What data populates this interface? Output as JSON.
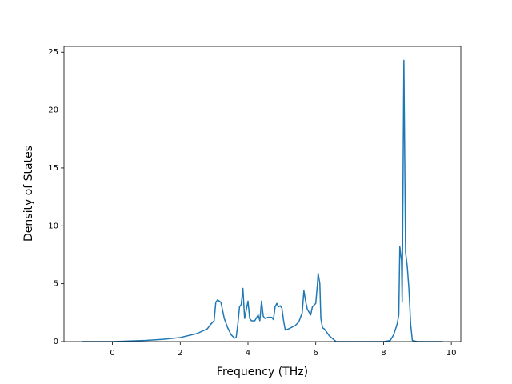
{
  "chart_data": {
    "type": "line",
    "x_label": "Frequency (THz)",
    "y_label": "Density of States",
    "x": [
      -0.9,
      0,
      0.5,
      1,
      1.5,
      2,
      2.5,
      2.8,
      2.9,
      3.0,
      3.05,
      3.1,
      3.2,
      3.3,
      3.4,
      3.5,
      3.6,
      3.65,
      3.7,
      3.75,
      3.8,
      3.85,
      3.9,
      4.0,
      4.05,
      4.1,
      4.2,
      4.3,
      4.35,
      4.4,
      4.45,
      4.5,
      4.6,
      4.7,
      4.75,
      4.8,
      4.85,
      4.9,
      4.95,
      5.0,
      5.05,
      5.1,
      5.2,
      5.4,
      5.5,
      5.6,
      5.65,
      5.7,
      5.75,
      5.85,
      5.9,
      6.0,
      6.05,
      6.07,
      6.12,
      6.15,
      6.2,
      6.25,
      6.3,
      6.4,
      6.6,
      8.0,
      8.2,
      8.3,
      8.4,
      8.45,
      8.48,
      8.53,
      8.55,
      8.6,
      8.65,
      8.7,
      8.75,
      8.8,
      8.85,
      9.0,
      9.75
    ],
    "series": [
      {
        "color": "#1f77b4",
        "values": [
          0,
          0,
          0.05,
          0.1,
          0.2,
          0.35,
          0.7,
          1.1,
          1.5,
          1.8,
          3.4,
          3.6,
          3.4,
          2.0,
          1.2,
          0.6,
          0.3,
          0.35,
          1.5,
          3.0,
          3.2,
          4.6,
          2.0,
          3.5,
          2.0,
          1.8,
          1.8,
          2.3,
          1.8,
          3.5,
          2.2,
          2.0,
          2.1,
          2.1,
          1.9,
          3.0,
          3.3,
          3.0,
          3.1,
          2.9,
          1.8,
          1.0,
          1.1,
          1.4,
          1.7,
          2.5,
          4.4,
          3.5,
          2.8,
          2.3,
          3.0,
          3.3,
          5.0,
          5.9,
          5.0,
          2.0,
          1.2,
          1.1,
          0.9,
          0.5,
          0,
          0,
          0.1,
          0.6,
          1.5,
          2.3,
          8.2,
          7.0,
          3.4,
          24.3,
          7.7,
          6.5,
          4.5,
          1.5,
          0.1,
          0,
          0
        ]
      }
    ],
    "xlim": [
      -1.43,
      10.28
    ],
    "ylim": [
      0,
      25.5
    ],
    "xticks": [
      0,
      2,
      4,
      6,
      8,
      10
    ],
    "yticks": [
      0,
      5,
      10,
      15,
      20,
      25
    ]
  }
}
